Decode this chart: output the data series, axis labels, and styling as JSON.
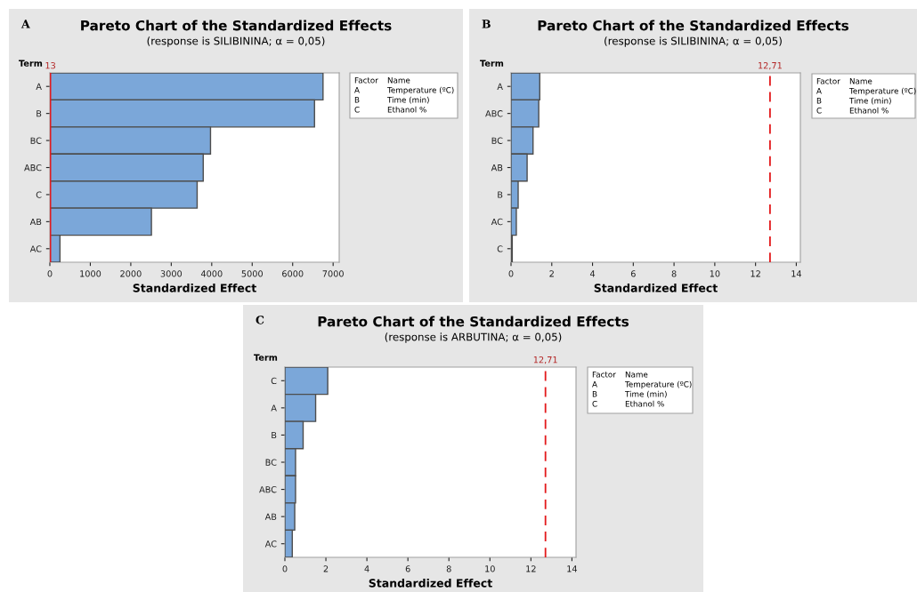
{
  "chart_data": [
    {
      "type": "bar",
      "orientation": "horizontal",
      "title": "Pareto Chart of the Standardized Effects",
      "subtitle": "(response is SILIBININA; α = 0,05)",
      "xlabel": "Standardized Effect",
      "ylabel": "Term",
      "categories": [
        "A",
        "B",
        "BC",
        "ABC",
        "C",
        "AB",
        "AC"
      ],
      "values": [
        6750,
        6540,
        3970,
        3790,
        3640,
        2510,
        250
      ],
      "color": "#7ba7d9",
      "xlim": [
        0,
        7150
      ],
      "xticks": [
        0,
        1000,
        2000,
        3000,
        4000,
        5000,
        6000,
        7000
      ],
      "ref_lines": [
        {
          "axis": "x",
          "value": 13,
          "label": "13",
          "color": "#e31a1c",
          "line_style": "solid"
        }
      ],
      "annotations": [
        "A",
        "Factor",
        "Name",
        "A",
        "Temperature (ºC)",
        "B",
        "Time (min)",
        "C",
        "Ethanol %"
      ],
      "grid": false,
      "legend": false
    },
    {
      "type": "bar",
      "orientation": "horizontal",
      "title": "Pareto Chart of the Standardized Effects",
      "subtitle": "(response is SILIBININA; α = 0,05)",
      "xlabel": "Standardized Effect",
      "ylabel": "Term",
      "categories": [
        "A",
        "ABC",
        "BC",
        "AB",
        "B",
        "AC",
        "C"
      ],
      "values": [
        1.41,
        1.36,
        1.08,
        0.79,
        0.35,
        0.26,
        0.06
      ],
      "color": "#7ba7d9",
      "xlim": [
        0,
        14.2
      ],
      "xticks": [
        0,
        2,
        4,
        6,
        8,
        10,
        12,
        14
      ],
      "ref_lines": [
        {
          "axis": "x",
          "value": 12.71,
          "label": "12,71",
          "color": "#e31a1c",
          "line_style": "dashed"
        }
      ],
      "annotations": [
        "B",
        "Factor",
        "Name",
        "A",
        "Temperature (ºC)",
        "B",
        "Time (min)",
        "C",
        "Ethanol %"
      ],
      "grid": false,
      "legend": false
    },
    {
      "type": "bar",
      "orientation": "horizontal",
      "title": "Pareto Chart of the Standardized Effects",
      "subtitle": "(response is ARBUTINA; α = 0,05)",
      "xlabel": "Standardized Effect",
      "ylabel": "Term",
      "categories": [
        "C",
        "A",
        "B",
        "BC",
        "ABC",
        "AB",
        "AC"
      ],
      "values": [
        2.09,
        1.5,
        0.89,
        0.52,
        0.52,
        0.48,
        0.36
      ],
      "color": "#7ba7d9",
      "xlim": [
        0,
        14.2
      ],
      "xticks": [
        0,
        2,
        4,
        6,
        8,
        10,
        12,
        14
      ],
      "ref_lines": [
        {
          "axis": "x",
          "value": 12.71,
          "label": "12,71",
          "color": "#e31a1c",
          "line_style": "dashed"
        }
      ],
      "annotations": [
        "C",
        "Factor",
        "Name",
        "A",
        "Temperature (ºC)",
        "B",
        "Time (min)",
        "C",
        "Ethanol %"
      ],
      "grid": false,
      "legend": false
    }
  ]
}
